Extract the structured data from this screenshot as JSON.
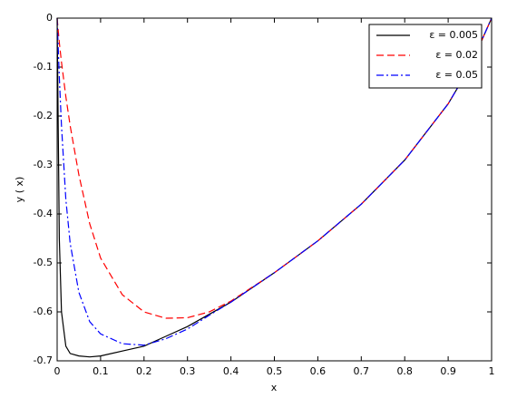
{
  "chart_data": {
    "type": "line",
    "xlabel": "x",
    "ylabel": "y ( x)",
    "x": [
      0,
      0.005,
      0.01,
      0.02,
      0.03,
      0.05,
      0.075,
      0.1,
      0.15,
      0.2,
      0.25,
      0.3,
      0.35,
      0.4,
      0.5,
      0.6,
      0.7,
      0.8,
      0.9,
      0.95,
      1
    ],
    "series": [
      {
        "name": "ε = 0.005",
        "color": "#000000",
        "dash": "solid",
        "values": [
          0,
          -0.45,
          -0.6,
          -0.67,
          -0.685,
          -0.69,
          -0.692,
          -0.69,
          -0.68,
          -0.67,
          -0.65,
          -0.63,
          -0.605,
          -0.58,
          -0.52,
          -0.455,
          -0.38,
          -0.29,
          -0.175,
          -0.1,
          0
        ]
      },
      {
        "name": "ε = 0.02",
        "color": "#ff0000",
        "dash": "dashed",
        "values": [
          0,
          -0.05,
          -0.09,
          -0.16,
          -0.22,
          -0.32,
          -0.42,
          -0.49,
          -0.565,
          -0.6,
          -0.613,
          -0.612,
          -0.6,
          -0.578,
          -0.52,
          -0.455,
          -0.38,
          -0.29,
          -0.175,
          -0.1,
          0
        ]
      },
      {
        "name": "ε = 0.05",
        "color": "#0000ff",
        "dash": "dashdot",
        "values": [
          0,
          -0.12,
          -0.22,
          -0.37,
          -0.46,
          -0.56,
          -0.62,
          -0.645,
          -0.665,
          -0.668,
          -0.655,
          -0.635,
          -0.607,
          -0.58,
          -0.52,
          -0.455,
          -0.38,
          -0.29,
          -0.175,
          -0.1,
          0
        ]
      }
    ],
    "xlim": [
      0,
      1
    ],
    "xticks": [
      0,
      0.1,
      0.2,
      0.3,
      0.4,
      0.5,
      0.6,
      0.7,
      0.8,
      0.9,
      1
    ],
    "ylim": [
      -0.7,
      0
    ],
    "yticks": [
      -0.7,
      -0.6,
      -0.5,
      -0.4,
      -0.3,
      -0.2,
      -0.1,
      0
    ],
    "grid": false,
    "legend": "upper right"
  }
}
